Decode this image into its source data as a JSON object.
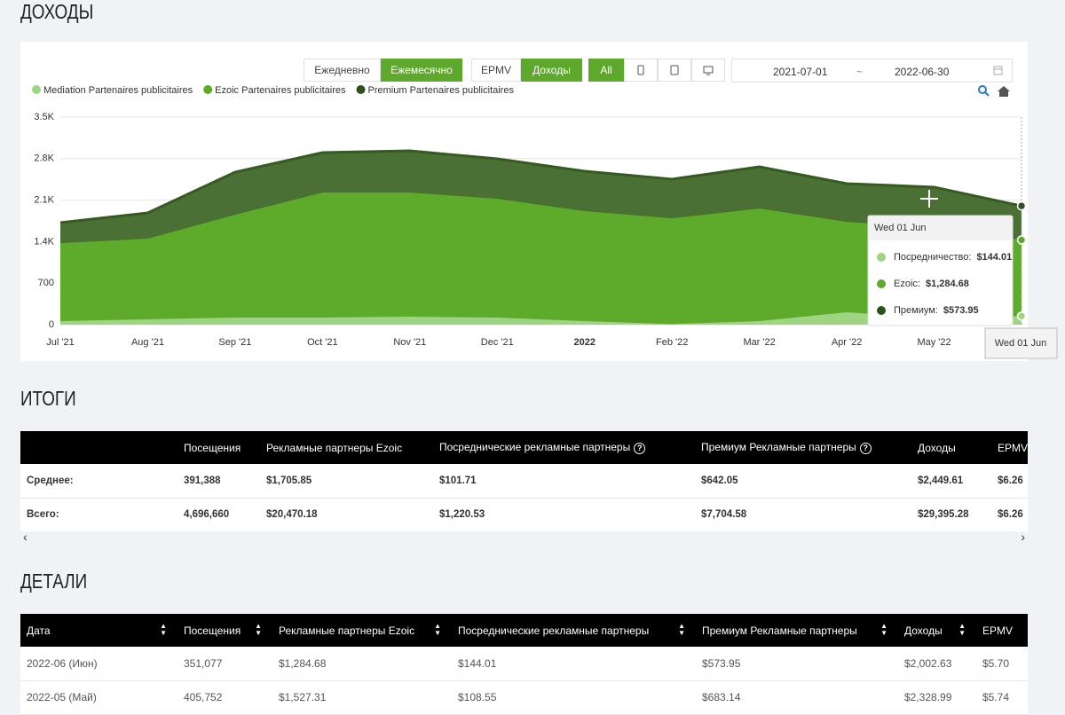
{
  "header": {
    "title": "ДОХОДЫ"
  },
  "controls": {
    "period": [
      "Ежедневно",
      "Ежемесячно"
    ],
    "metric": [
      "EPMV",
      "Доходы"
    ],
    "device_all": "All",
    "date_from": "2021-07-01",
    "date_separator": "~",
    "date_to": "2022-06-30"
  },
  "chart_data": {
    "type": "area",
    "stacked": true,
    "categories": [
      "Jul '21",
      "Aug '21",
      "Sep '21",
      "Oct '21",
      "Nov '21",
      "Dec '21",
      "2022",
      "Feb '22",
      "Mar '22",
      "Apr '22",
      "May '22",
      null
    ],
    "series": [
      {
        "name": "Mediation Partenaires publicitaires",
        "color": "#9fd483",
        "values": [
          60,
          90,
          120,
          120,
          135,
          120,
          60,
          10,
          60,
          210,
          108.55,
          144.01
        ]
      },
      {
        "name": "Ezoic Partenaires publicitaires",
        "color": "#5eab2b",
        "values": [
          1316,
          1361,
          1735,
          2109,
          2094,
          2004,
          1854,
          1785,
          1899,
          1525,
          1527.31,
          1284.68
        ]
      },
      {
        "name": "Premium Partenaires publicitaires",
        "color": "#41682a",
        "values": [
          344,
          434,
          717,
          673,
          702,
          673,
          673,
          658,
          703,
          643,
          683.14,
          573.95
        ]
      }
    ],
    "ylim": [
      0,
      3500
    ],
    "yticks": [
      0,
      700,
      {
        "value": 1400,
        "label": "1.4K"
      },
      {
        "value": 2100,
        "label": "2.1K"
      },
      {
        "value": 2800,
        "label": "2.8K"
      },
      {
        "value": 3500,
        "label": "3.5K"
      }
    ],
    "grid": true,
    "legend": "top-left",
    "crosshair_label": "Wed 01 Jun",
    "tooltip": {
      "title": "Wed 01 Jun",
      "items": [
        {
          "label": "Посредничество:",
          "value_label": "$144.01"
        },
        {
          "label": "Ezoic:",
          "value_label": "$1,284.68"
        },
        {
          "label": "Премиум:",
          "value_label": "$573.95"
        }
      ]
    }
  },
  "summary": {
    "title": "ИТОГИ",
    "columns": [
      "Посещения",
      "Рекламные партнеры Ezoic",
      "Посреднические рекламные партнеры",
      "Премиум Рекламные партнеры",
      "Доходы",
      "EPMV"
    ],
    "rows": [
      [
        "Среднее:",
        "391,388",
        "$1,705.85",
        "$101.71",
        "$642.05",
        "$2,449.61",
        "$6.26"
      ],
      [
        "Всего:",
        "4,696,660",
        "$20,470.18",
        "$1,220.53",
        "$7,704.58",
        "$29,395.28",
        "$6.26"
      ]
    ]
  },
  "details": {
    "title": "ДЕТАЛИ",
    "columns": [
      "Дата",
      "Посещения",
      "Рекламные партнеры Ezoic",
      "Посреднические рекламные партнеры",
      "Премиум Рекламные партнеры",
      "Доходы",
      "EPMV"
    ],
    "rows": [
      [
        "2022-06 (Июн)",
        "351,077",
        "$1,284.68",
        "$144.01",
        "$573.95",
        "$2,002.63",
        "$5.70"
      ],
      [
        "2022-05 (Май)",
        "405,752",
        "$1,527.31",
        "$108.55",
        "$683.14",
        "$2,328.99",
        "$5.74"
      ]
    ]
  }
}
